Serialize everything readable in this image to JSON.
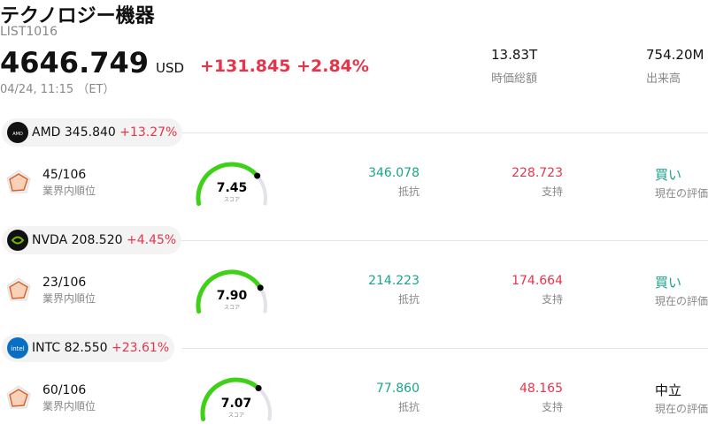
{
  "header": {
    "title": "テクノロジー機器",
    "list_id": "LIST1016",
    "price": "4646.749",
    "currency": "USD",
    "change": "+131.845",
    "change_pct": "+2.84%",
    "datetime": "04/24, 11:15 （ET）",
    "market_cap": "13.83T",
    "market_cap_label": "時価総額",
    "volume": "754.20M",
    "volume_label": "出来高"
  },
  "stocks": [
    {
      "ticker": "AMD",
      "logo_text": "AMD",
      "price": "345.840",
      "change_pct": "+13.27%",
      "rank": "45/106",
      "rank_label": "業界内順位",
      "score": "7.45",
      "score_label": "スコア",
      "resistance": "346.078",
      "resistance_label": "抵抗",
      "support": "228.723",
      "support_label": "支持",
      "rating": "買い",
      "rating_color": "#1aa58a",
      "rating_label": "現在の評価"
    },
    {
      "ticker": "NVDA",
      "price": "208.520",
      "change_pct": "+4.45%",
      "rank": "23/106",
      "rank_label": "業界内順位",
      "score": "7.90",
      "score_label": "スコア",
      "resistance": "214.223",
      "resistance_label": "抵抗",
      "support": "174.664",
      "support_label": "支持",
      "rating": "買い",
      "rating_color": "#1aa58a",
      "rating_label": "現在の評価"
    },
    {
      "ticker": "INTC",
      "logo_text": "intel",
      "price": "82.550",
      "change_pct": "+23.61%",
      "rank": "60/106",
      "rank_label": "業界内順位",
      "score": "7.07",
      "score_label": "スコア",
      "resistance": "77.860",
      "resistance_label": "抵抗",
      "support": "48.165",
      "support_label": "支持",
      "rating": "中立",
      "rating_color": "#111111",
      "rating_label": "現在の評価"
    }
  ]
}
